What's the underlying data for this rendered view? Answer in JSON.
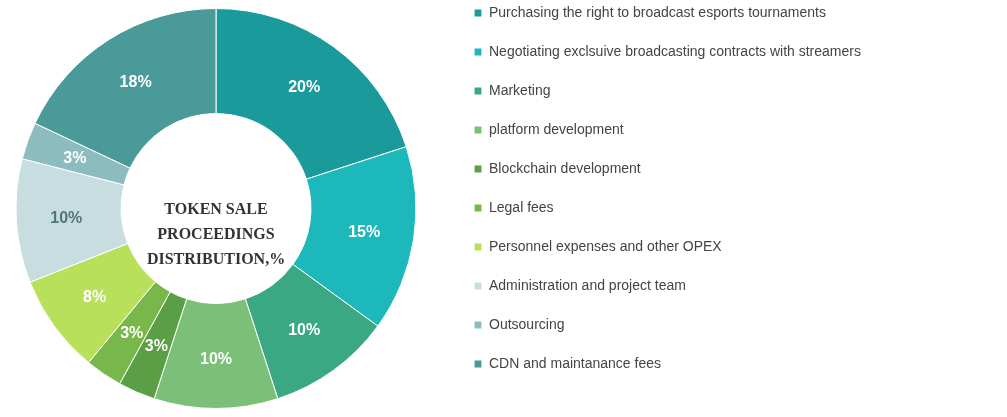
{
  "chart_data": {
    "type": "donut",
    "title": "TOKEN SALE\nPROCEEDINGS\nDISTRIBUTION,%",
    "categories": [
      "Purchasing the right to broadcast esports tournaments",
      "Negotiating exclsuive broadcasting contracts with streamers",
      "Marketing",
      "platform development",
      "Blockchain development",
      "Legal fees",
      "Personnel expenses and other OPEX",
      "Administration and project team",
      "Outsourcing",
      "CDN and maintanance fees"
    ],
    "values": [
      20,
      15,
      10,
      10,
      3,
      3,
      8,
      10,
      3,
      18
    ],
    "value_labels": [
      "20%",
      "15%",
      "10%",
      "10%",
      "3%",
      "3%",
      "8%",
      "10%",
      "3%",
      "18%"
    ],
    "colors": [
      "#1a9a9a",
      "#1cb8bc",
      "#3aa882",
      "#7cbf78",
      "#5a9e45",
      "#78b84a",
      "#b8e05a",
      "#c8dde0",
      "#8cbcbf",
      "#4a9a9a"
    ],
    "legend": "right"
  }
}
